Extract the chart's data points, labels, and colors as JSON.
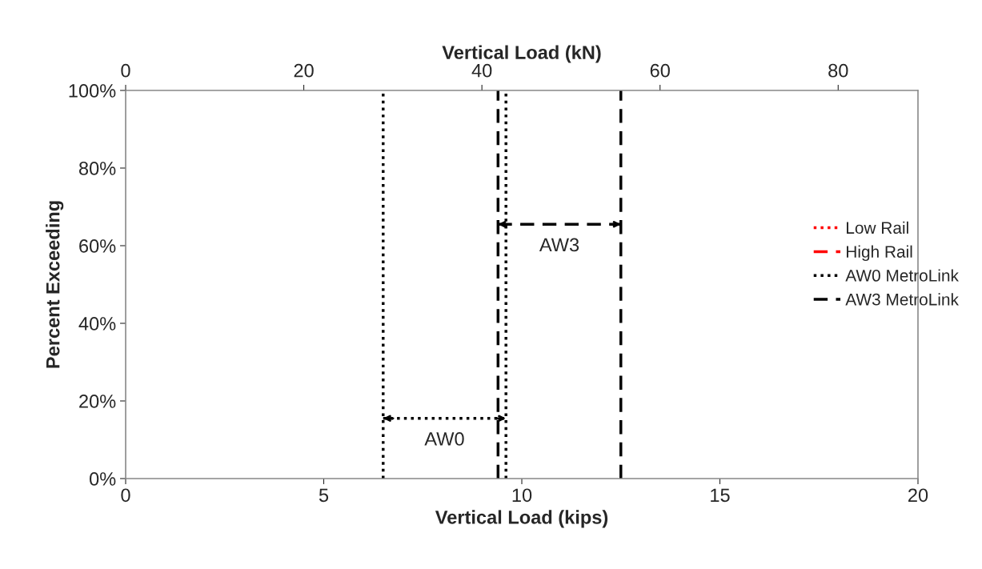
{
  "chart_data": {
    "type": "line",
    "xlabel": "Vertical Load (kips)",
    "ylabel": "Percent Exceeding",
    "x2label": "Vertical Load (kN)",
    "xlim": [
      0,
      20
    ],
    "xticks": [
      0,
      5,
      10,
      15,
      20
    ],
    "ylim": [
      0,
      100
    ],
    "yticks": [
      {
        "value": 0,
        "label": "0%"
      },
      {
        "value": 20,
        "label": "20%"
      },
      {
        "value": 40,
        "label": "40%"
      },
      {
        "value": 60,
        "label": "60%"
      },
      {
        "value": 80,
        "label": "80%"
      },
      {
        "value": 100,
        "label": "100%"
      }
    ],
    "x2lim": [
      0,
      88.96
    ],
    "x2ticks": [
      0,
      20,
      40,
      60,
      80
    ],
    "grid": false,
    "legend": "right",
    "series": [
      {
        "name": "Low Rail",
        "color": "#ff0000",
        "line_style": "dotted"
      },
      {
        "name": "High Rail",
        "color": "#ff0000",
        "line_style": "dashed"
      },
      {
        "name": "AW0 MetroLink",
        "color": "#000000",
        "line_style": "dotted",
        "x": [
          6.5,
          6.5
        ],
        "values": [
          0,
          100
        ]
      },
      {
        "color": "#000000",
        "line_style": "dotted",
        "x": [
          9.6,
          9.6
        ],
        "values": [
          0,
          100
        ]
      },
      {
        "name": "AW3 MetroLink",
        "color": "#000000",
        "line_style": "dashed",
        "x": [
          9.4,
          9.4
        ],
        "values": [
          0,
          100
        ]
      },
      {
        "color": "#000000",
        "line_style": "dashed",
        "x": [
          12.5,
          12.5
        ],
        "values": [
          0,
          100
        ]
      },
      {
        "color": "#000000",
        "line_style": "dotted",
        "x": [
          6.5,
          9.6
        ],
        "values": [
          15.5,
          15.5
        ]
      },
      {
        "color": "#000000",
        "line_style": "dashed",
        "x": [
          9.4,
          12.5
        ],
        "values": [
          65.5,
          65.5
        ]
      }
    ],
    "annotations": [
      {
        "text": "AW0",
        "x": 8.05,
        "y": 15.5
      },
      {
        "text": "AW3",
        "x": 10.95,
        "y": 65.5
      }
    ]
  }
}
